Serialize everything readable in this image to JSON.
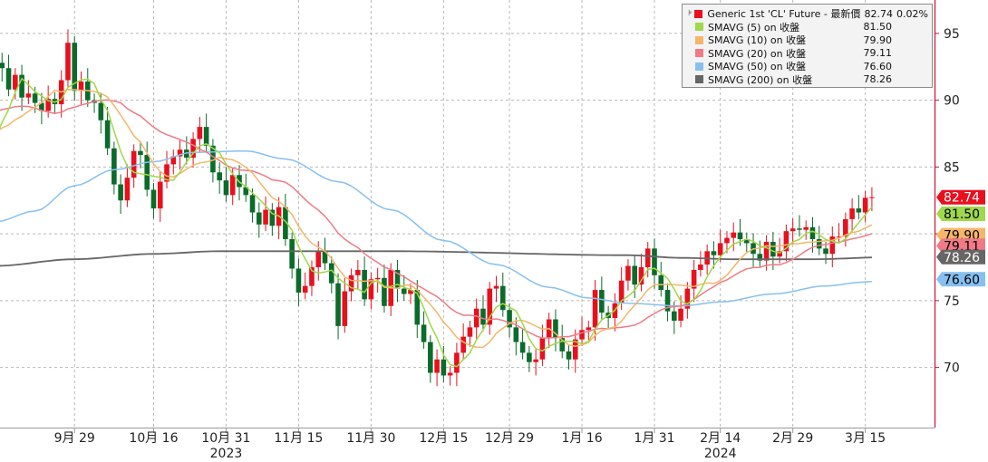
{
  "chart_data": {
    "type": "candlestick",
    "x_ticks": [
      {
        "label": "9月 29",
        "i": 12
      },
      {
        "label": "10月 16",
        "i": 24
      },
      {
        "label": "10月 31",
        "i": 35
      },
      {
        "label": "11月 15",
        "i": 46
      },
      {
        "label": "11月 30",
        "i": 57
      },
      {
        "label": "12月 15",
        "i": 68
      },
      {
        "label": "12月 29",
        "i": 78
      },
      {
        "label": "1月 16",
        "i": 89
      },
      {
        "label": "1月 31",
        "i": 100
      },
      {
        "label": "2月 14",
        "i": 110
      },
      {
        "label": "2月 29",
        "i": 121
      },
      {
        "label": "3月 15",
        "i": 132
      }
    ],
    "year_labels": [
      {
        "label": "2023",
        "i": 35
      },
      {
        "label": "2024",
        "i": 110
      }
    ],
    "ylim": [
      65.5,
      97.5
    ],
    "y_ticks": [
      70,
      75,
      80,
      85,
      90,
      95
    ],
    "grid": true,
    "legend_position": "top-right",
    "series": [
      {
        "name": "Generic 1st 'CL' Future - 最新價",
        "value": "82.74",
        "change": "0.02%",
        "color": "#e8101e",
        "last": 82.74
      },
      {
        "name": "SMAVG (5)  on 收盤",
        "value": "81.50",
        "color": "#9fd84a",
        "last": 81.5
      },
      {
        "name": "SMAVG (10)  on 收盤",
        "value": "79.90",
        "color": "#f5b66a",
        "last": 79.9
      },
      {
        "name": "SMAVG (20)  on 收盤",
        "value": "79.11",
        "color": "#f07a86",
        "last": 79.11
      },
      {
        "name": "SMAVG (50)  on 收盤",
        "value": "76.60",
        "color": "#87c0f0",
        "last": 76.6
      },
      {
        "name": "SMAVG (200)  on 收盤",
        "value": "78.26",
        "color": "#666666",
        "last": 78.26
      }
    ],
    "closes": [
      92.8,
      92.4,
      90.8,
      91.9,
      90.2,
      90.5,
      89.8,
      89.2,
      90.1,
      89.7,
      91.5,
      94.3,
      90.7,
      91.4,
      90.0,
      89.8,
      88.5,
      86.4,
      83.7,
      82.5,
      84.2,
      86.2,
      85.9,
      83.3,
      81.9,
      83.9,
      85.2,
      85.8,
      86.3,
      85.7,
      87.1,
      88.0,
      86.6,
      84.6,
      84.0,
      82.9,
      84.4,
      83.5,
      82.9,
      81.6,
      80.7,
      81.8,
      80.6,
      82.0,
      79.6,
      77.4,
      75.6,
      76.1,
      77.5,
      78.7,
      77.8,
      76.3,
      73.1,
      75.7,
      76.9,
      77.3,
      75.1,
      76.6,
      76.7,
      74.6,
      77.3,
      75.9,
      75.5,
      75.8,
      73.2,
      71.9,
      69.6,
      70.6,
      69.4,
      69.6,
      71.1,
      72.3,
      73.0,
      74.4,
      73.2,
      75.9,
      76.1,
      74.3,
      73.0,
      71.9,
      71.1,
      70.4,
      70.6,
      72.2,
      73.6,
      72.2,
      71.2,
      70.6,
      72.1,
      72.8,
      73.0,
      75.8,
      74.1,
      73.7,
      74.8,
      76.5,
      77.6,
      76.2,
      77.5,
      78.9,
      76.9,
      75.8,
      74.2,
      73.5,
      74.4,
      75.9,
      77.3,
      77.7,
      78.7,
      78.4,
      79.3,
      79.7,
      80.1,
      79.6,
      79.3,
      78.5,
      78.0,
      79.4,
      78.3,
      78.7,
      80.2,
      80.4,
      80.3,
      80.5,
      79.6,
      78.9,
      78.5,
      79.8,
      79.8,
      81.1,
      81.9,
      81.6,
      82.7,
      82.74
    ]
  }
}
